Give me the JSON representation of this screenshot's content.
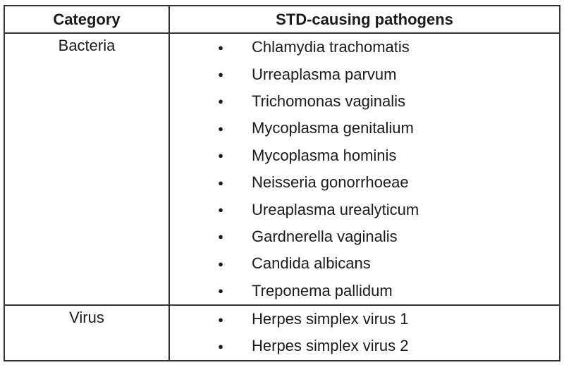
{
  "table": {
    "headers": [
      "Category",
      "STD-causing pathogens"
    ],
    "rows": [
      {
        "category": "Bacteria",
        "pathogens": [
          "Chlamydia trachomatis",
          "Urreaplasma parvum",
          "Trichomonas vaginalis",
          "Mycoplasma genitalium",
          "Mycoplasma hominis",
          "Neisseria gonorrhoeae",
          "Ureaplasma urealyticum",
          "Gardnerella vaginalis",
          "Candida albicans",
          "Treponema pallidum"
        ]
      },
      {
        "category": "Virus",
        "pathogens": [
          "Herpes simplex virus 1",
          "Herpes simplex virus 2"
        ]
      }
    ]
  }
}
